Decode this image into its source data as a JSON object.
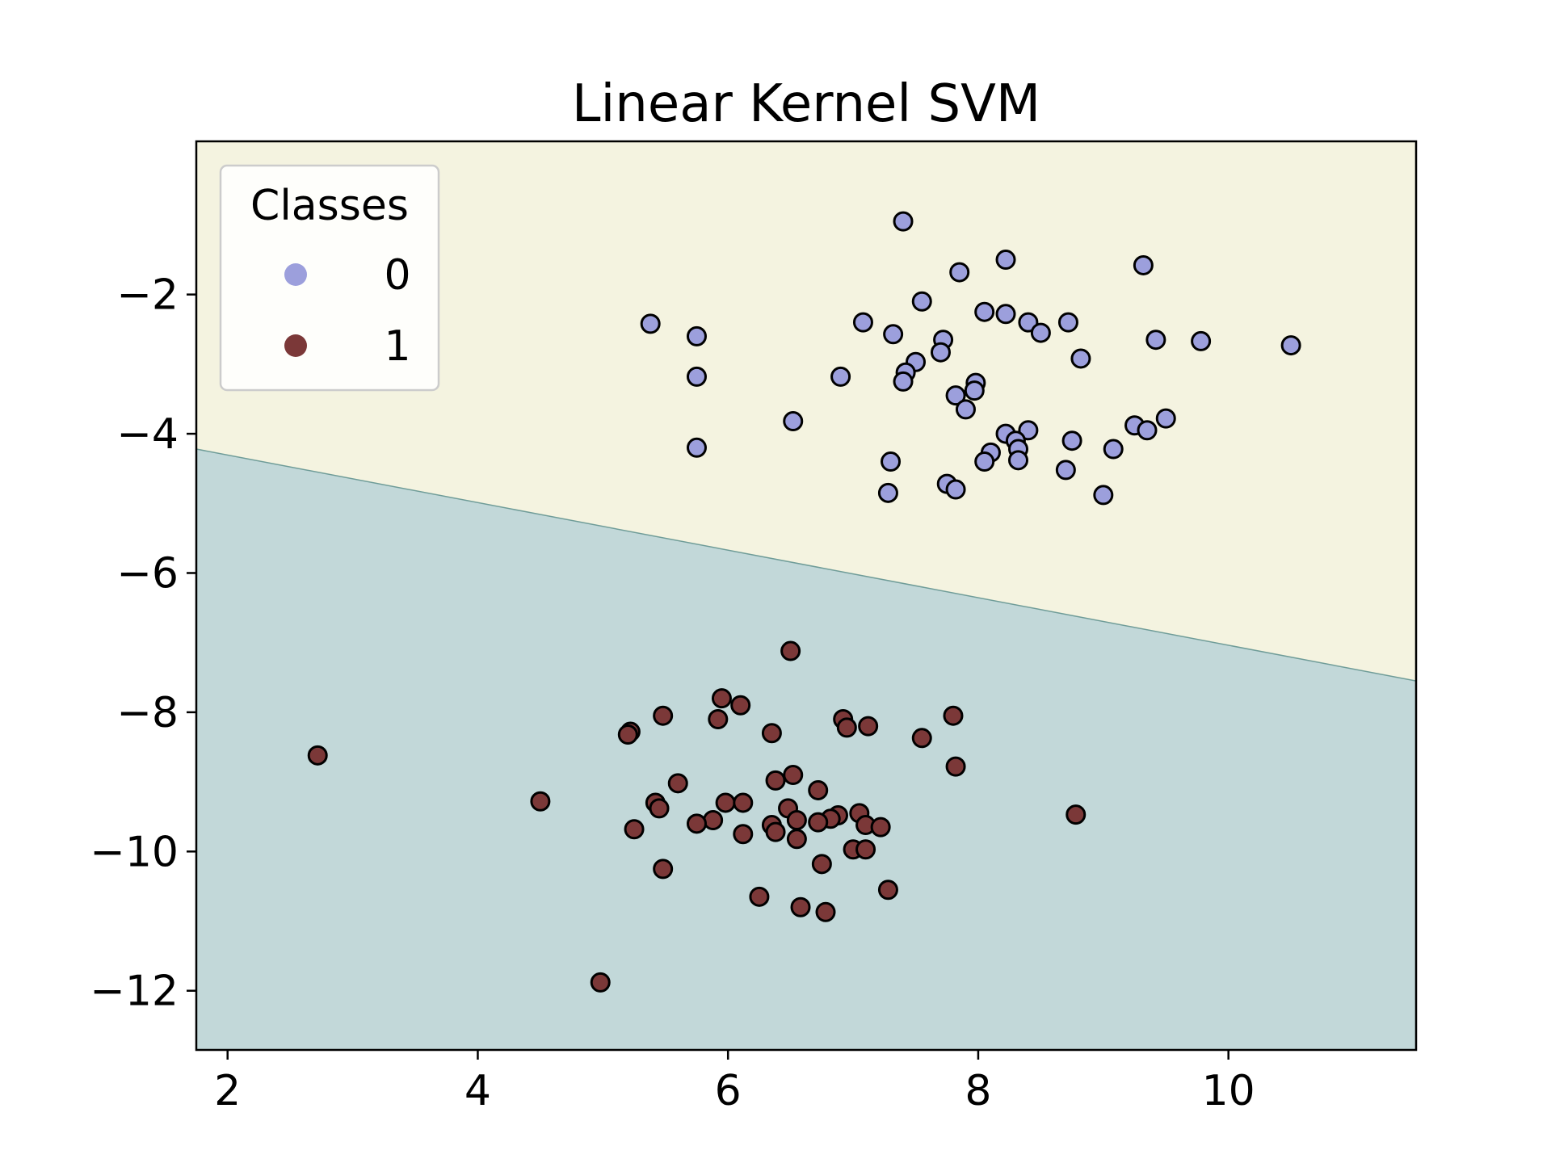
{
  "chart_data": {
    "type": "scatter",
    "title": "Linear Kernel SVM",
    "xlabel": "",
    "ylabel": "",
    "xlim": [
      1.75,
      11.5
    ],
    "ylim": [
      -12.85,
      0.2
    ],
    "x_ticks": [
      2,
      4,
      6,
      8,
      10
    ],
    "y_ticks": [
      -2,
      -4,
      -6,
      -8,
      -10,
      -12
    ],
    "x_tick_labels": [
      "2",
      "4",
      "6",
      "8",
      "10"
    ],
    "y_tick_labels": [
      "−2",
      "−4",
      "−6",
      "−8",
      "−10",
      "−12"
    ],
    "grid": false,
    "decision_boundary": {
      "points": [
        [
          1.75,
          -4.22
        ],
        [
          11.5,
          -7.55
        ]
      ],
      "region_above": "0",
      "region_below": "1",
      "region_above_color": "#f4f3e0",
      "region_below_color": "#c2d8d9"
    },
    "legend": {
      "title": "Classes",
      "position": "upper-left",
      "entries": [
        {
          "label": "0",
          "color": "#9c9fdc"
        },
        {
          "label": "1",
          "color": "#7b3838"
        }
      ]
    },
    "series": [
      {
        "name": "0",
        "color": "#9c9fdc",
        "points": [
          [
            7.4,
            -0.95
          ],
          [
            8.22,
            -1.5
          ],
          [
            9.32,
            -1.58
          ],
          [
            7.85,
            -1.68
          ],
          [
            7.55,
            -2.1
          ],
          [
            8.05,
            -2.25
          ],
          [
            8.22,
            -2.28
          ],
          [
            8.4,
            -2.4
          ],
          [
            8.72,
            -2.4
          ],
          [
            5.38,
            -2.42
          ],
          [
            7.08,
            -2.4
          ],
          [
            8.5,
            -2.55
          ],
          [
            7.32,
            -2.57
          ],
          [
            5.75,
            -2.6
          ],
          [
            7.72,
            -2.65
          ],
          [
            9.42,
            -2.65
          ],
          [
            9.78,
            -2.67
          ],
          [
            10.5,
            -2.73
          ],
          [
            7.7,
            -2.83
          ],
          [
            8.82,
            -2.92
          ],
          [
            7.5,
            -2.97
          ],
          [
            7.42,
            -3.12
          ],
          [
            7.4,
            -3.25
          ],
          [
            6.9,
            -3.18
          ],
          [
            5.75,
            -3.18
          ],
          [
            7.98,
            -3.27
          ],
          [
            7.97,
            -3.38
          ],
          [
            7.82,
            -3.45
          ],
          [
            7.9,
            -3.65
          ],
          [
            6.52,
            -3.82
          ],
          [
            9.5,
            -3.78
          ],
          [
            9.25,
            -3.88
          ],
          [
            9.35,
            -3.95
          ],
          [
            8.4,
            -3.95
          ],
          [
            8.22,
            -4.0
          ],
          [
            8.3,
            -4.1
          ],
          [
            8.75,
            -4.1
          ],
          [
            5.75,
            -4.2
          ],
          [
            9.08,
            -4.22
          ],
          [
            8.1,
            -4.27
          ],
          [
            8.32,
            -4.22
          ],
          [
            8.05,
            -4.4
          ],
          [
            8.32,
            -4.38
          ],
          [
            7.3,
            -4.4
          ],
          [
            8.7,
            -4.52
          ],
          [
            7.75,
            -4.72
          ],
          [
            7.82,
            -4.8
          ],
          [
            7.28,
            -4.85
          ],
          [
            9.0,
            -4.88
          ]
        ]
      },
      {
        "name": "1",
        "color": "#7b3838",
        "points": [
          [
            6.5,
            -7.12
          ],
          [
            5.95,
            -7.8
          ],
          [
            6.1,
            -7.9
          ],
          [
            5.48,
            -8.05
          ],
          [
            7.8,
            -8.05
          ],
          [
            5.92,
            -8.1
          ],
          [
            6.92,
            -8.1
          ],
          [
            7.12,
            -8.2
          ],
          [
            6.95,
            -8.22
          ],
          [
            5.22,
            -8.28
          ],
          [
            5.2,
            -8.32
          ],
          [
            6.35,
            -8.3
          ],
          [
            7.55,
            -8.37
          ],
          [
            2.72,
            -8.62
          ],
          [
            7.82,
            -8.78
          ],
          [
            6.52,
            -8.9
          ],
          [
            6.38,
            -8.98
          ],
          [
            5.6,
            -9.02
          ],
          [
            6.72,
            -9.12
          ],
          [
            4.5,
            -9.28
          ],
          [
            5.42,
            -9.3
          ],
          [
            5.98,
            -9.3
          ],
          [
            6.12,
            -9.3
          ],
          [
            5.45,
            -9.38
          ],
          [
            6.48,
            -9.38
          ],
          [
            8.78,
            -9.47
          ],
          [
            6.88,
            -9.48
          ],
          [
            7.05,
            -9.45
          ],
          [
            6.82,
            -9.53
          ],
          [
            5.88,
            -9.55
          ],
          [
            6.55,
            -9.55
          ],
          [
            5.75,
            -9.6
          ],
          [
            6.72,
            -9.58
          ],
          [
            6.35,
            -9.62
          ],
          [
            7.1,
            -9.62
          ],
          [
            7.22,
            -9.65
          ],
          [
            5.25,
            -9.68
          ],
          [
            6.38,
            -9.72
          ],
          [
            6.12,
            -9.75
          ],
          [
            6.55,
            -9.82
          ],
          [
            7.0,
            -9.97
          ],
          [
            7.1,
            -9.97
          ],
          [
            6.75,
            -10.18
          ],
          [
            5.48,
            -10.25
          ],
          [
            7.28,
            -10.55
          ],
          [
            6.25,
            -10.65
          ],
          [
            6.58,
            -10.8
          ],
          [
            6.78,
            -10.87
          ],
          [
            4.98,
            -11.88
          ]
        ]
      }
    ]
  }
}
